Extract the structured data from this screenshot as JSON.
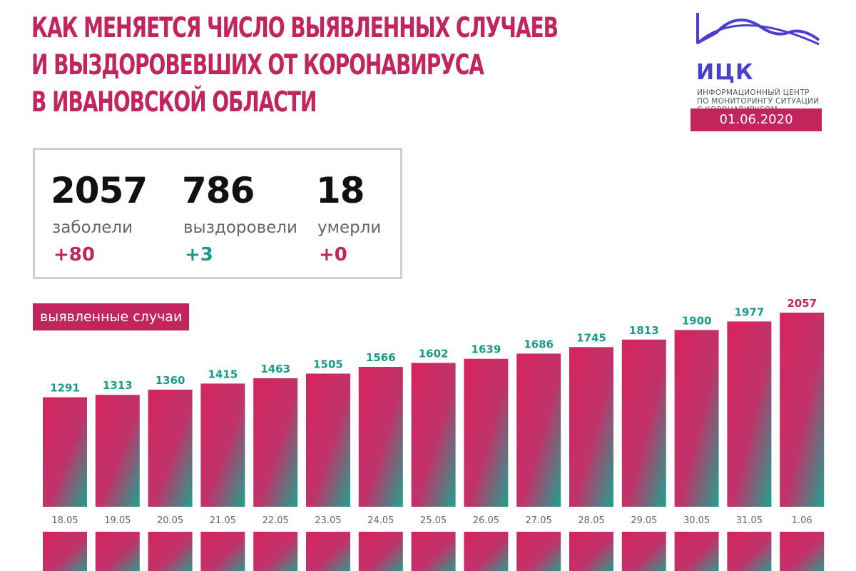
{
  "header": {
    "title_lines": [
      "КАК МЕНЯЕТСЯ ЧИСЛО ВЫЯВЛЕННЫХ СЛУЧАЕВ",
      "И ВЫЗДОРОВЕВШИХ ОТ КОРОНАВИРУСА",
      "В ИВАНОВСКОЙ ОБЛАСТИ"
    ]
  },
  "logo": {
    "abbr": "ИЦК",
    "subtitle_lines": [
      "ИНФОРМАЦИОННЫЙ ЦЕНТР",
      "ПО МОНИТОРИНГУ СИТУАЦИИ",
      "С КОРОНАВИРУСОМ"
    ],
    "date": "01.06.2020",
    "color": "#4b3fcf"
  },
  "stats": [
    {
      "value": "2057",
      "label": "заболели",
      "delta": "+80",
      "delta_color": "#c2255c"
    },
    {
      "value": "786",
      "label": "выздоровели",
      "delta": "+3",
      "delta_color": "#1a9a8a"
    },
    {
      "value": "18",
      "label": "умерли",
      "delta": "+0",
      "delta_color": "#c2255c"
    }
  ],
  "colors": {
    "accent": "#c2255c",
    "teal": "#1a9a8a",
    "bar_top": "#d6245e",
    "bar_bottom": "#1fa38e"
  },
  "chart_data": {
    "type": "bar",
    "title": "выявленные случаи",
    "categories": [
      "18.05",
      "19.05",
      "20.05",
      "21.05",
      "22.05",
      "23.05",
      "24.05",
      "25.05",
      "26.05",
      "27.05",
      "28.05",
      "29.05",
      "30.05",
      "31.05",
      "1.06"
    ],
    "values": [
      1291,
      1313,
      1360,
      1415,
      1463,
      1505,
      1566,
      1602,
      1639,
      1686,
      1745,
      1813,
      1900,
      1977,
      2057
    ],
    "ylim": [
      0,
      2100
    ],
    "grid": false,
    "last_label_color": "#c2255c",
    "label_color": "#1a9a8a"
  }
}
